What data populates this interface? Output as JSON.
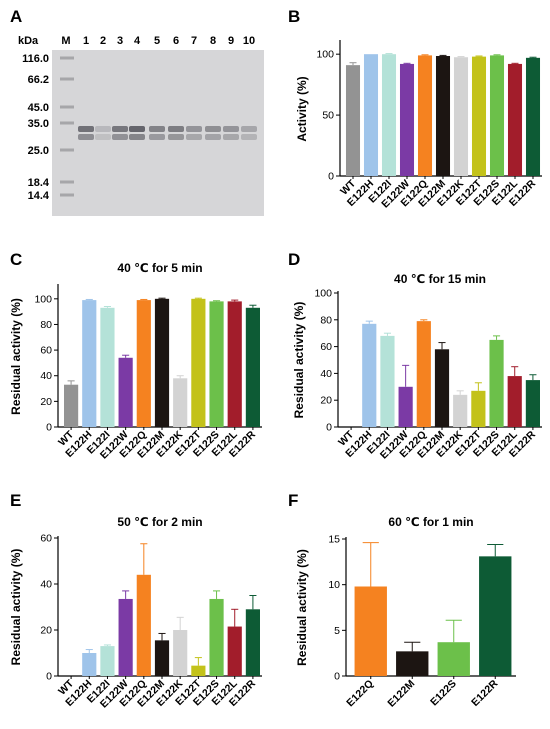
{
  "panels": {
    "A": {
      "label": "A",
      "kda_label": "kDa",
      "lane_labels": [
        "M",
        "1",
        "2",
        "3",
        "4",
        "5",
        "6",
        "7",
        "8",
        "9",
        "10"
      ],
      "marker_kda": [
        "116.0",
        "66.2",
        "45.0",
        "35.0",
        "25.0",
        "18.4",
        "14.4"
      ]
    }
  },
  "colors": {
    "WT": "#939393",
    "E122H": "#9fc4ea",
    "E122I": "#b4e2d8",
    "E122W": "#7b3aa5",
    "E122Q": "#f58220",
    "E122M": "#1c1512",
    "E122K": "#d3d3d3",
    "E122T": "#c3c21a",
    "E122S": "#6cc04a",
    "E122L": "#a21d2b",
    "E122R": "#0d5b35"
  },
  "chart_data": [
    {
      "panel": "B",
      "type": "bar",
      "title": "",
      "xlabel": "",
      "ylabel": "Activity (%)",
      "ylim": [
        0,
        110
      ],
      "yticks": [
        0,
        50,
        100
      ],
      "categories": [
        "WT",
        "E122H",
        "E122I",
        "E122W",
        "E122Q",
        "E122M",
        "E122K",
        "E122T",
        "E122S",
        "E122L",
        "E122R"
      ],
      "values": [
        91,
        100,
        100,
        92,
        99,
        98.5,
        97.5,
        98,
        99,
        92,
        97
      ],
      "errors": [
        2,
        0,
        0.5,
        0.5,
        0.5,
        0.5,
        0.5,
        0.5,
        0.5,
        0.5,
        0.5
      ]
    },
    {
      "panel": "C",
      "type": "bar",
      "title": "40 ℃ for 5 min",
      "xlabel": "",
      "ylabel": "Residual activity (%)",
      "ylim": [
        0,
        110
      ],
      "yticks": [
        0,
        20,
        40,
        60,
        80,
        100
      ],
      "categories": [
        "WT",
        "E122H",
        "E122I",
        "E122W",
        "E122Q",
        "E122M",
        "E122K",
        "E122T",
        "E122S",
        "E122L",
        "E122R"
      ],
      "values": [
        33,
        99,
        93,
        54,
        99,
        100,
        38,
        100,
        98,
        98,
        93
      ],
      "errors": [
        3,
        0.5,
        1,
        2,
        0.5,
        0.5,
        2,
        0.5,
        0.5,
        1,
        2
      ]
    },
    {
      "panel": "D",
      "type": "bar",
      "title": "40 ℃ for 15 min",
      "xlabel": "",
      "ylabel": "Residual activity (%)",
      "ylim": [
        0,
        100
      ],
      "yticks": [
        0,
        20,
        40,
        60,
        80,
        100
      ],
      "categories": [
        "WT",
        "E122H",
        "E122I",
        "E122W",
        "E122Q",
        "E122M",
        "E122K",
        "E122T",
        "E122S",
        "E122L",
        "E122R"
      ],
      "values": [
        0,
        77,
        68,
        30,
        79,
        58,
        24,
        27,
        65,
        38,
        35
      ],
      "errors": [
        0,
        2,
        2,
        16,
        1,
        5,
        3,
        6,
        3,
        7,
        4
      ]
    },
    {
      "panel": "E",
      "type": "bar",
      "title": "50 ℃ for 2 min",
      "xlabel": "",
      "ylabel": "Residual activity (%)",
      "ylim": [
        0,
        60
      ],
      "yticks": [
        0,
        20,
        40,
        60
      ],
      "categories": [
        "WT",
        "E122H",
        "E122I",
        "E122W",
        "E122Q",
        "E122M",
        "E122K",
        "E122T",
        "E122S",
        "E122L",
        "E122R"
      ],
      "values": [
        0,
        10,
        13,
        33.5,
        44,
        15.5,
        20,
        4.5,
        33.5,
        21.5,
        29
      ],
      "errors": [
        0,
        1.5,
        0.5,
        3.5,
        13.5,
        3,
        5.5,
        3.5,
        3.5,
        7.5,
        6
      ]
    },
    {
      "panel": "F",
      "type": "bar",
      "title": "60 ℃ for 1 min",
      "xlabel": "",
      "ylabel": "Residual activity (%)",
      "ylim": [
        0,
        15
      ],
      "yticks": [
        0,
        5,
        10,
        15
      ],
      "categories": [
        "E122Q",
        "E122M",
        "E122S",
        "E122R"
      ],
      "values": [
        9.8,
        2.7,
        3.7,
        13.1
      ],
      "errors": [
        4.8,
        1.0,
        2.4,
        1.3
      ]
    }
  ]
}
